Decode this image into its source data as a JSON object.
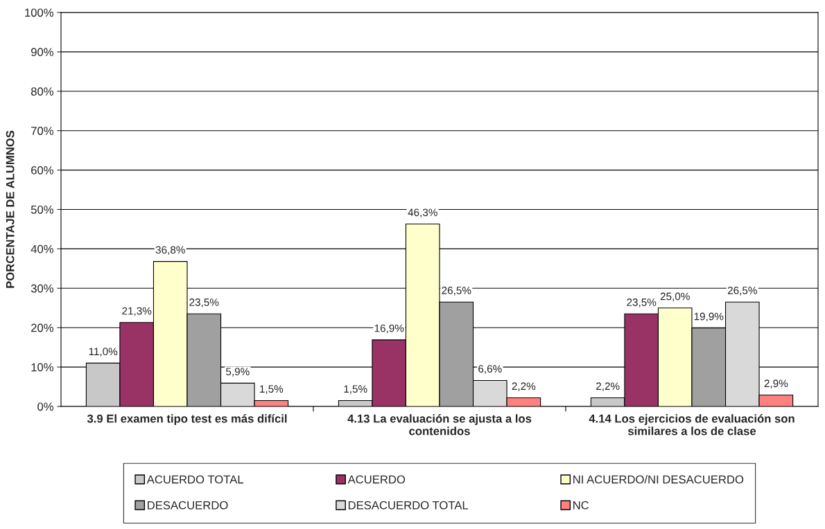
{
  "chart_data": {
    "type": "bar",
    "ylabel": "PORCENTAJE DE ALUMNOS",
    "categories": [
      "3.9 El examen tipo test es más difícil",
      "4.13 La evaluación se ajusta a los\ncontenidos",
      "4.14 Los ejercicios de evaluación son\nsimilares a los de clase"
    ],
    "series": [
      {
        "name": "ACUERDO TOTAL",
        "color": "#c8c8c8",
        "values": [
          11.0,
          1.5,
          2.2
        ],
        "value_labels": [
          "11,0%",
          "1,5%",
          "2,2%"
        ]
      },
      {
        "name": "ACUERDO",
        "color": "#993366",
        "values": [
          21.3,
          16.9,
          23.5
        ],
        "value_labels": [
          "21,3%",
          "16,9%",
          "23,5%"
        ]
      },
      {
        "name": "NI ACUERDO/NI DESACUERDO",
        "color": "#ffffcc",
        "values": [
          36.8,
          46.3,
          25.0
        ],
        "value_labels": [
          "36,8%",
          "46,3%",
          "25,0%"
        ]
      },
      {
        "name": "DESACUERDO",
        "color": "#a0a0a0",
        "values": [
          23.5,
          26.5,
          19.9
        ],
        "value_labels": [
          "23,5%",
          "26,5%",
          "19,9%"
        ]
      },
      {
        "name": "DESACUERDO TOTAL",
        "color": "#d9d9d9",
        "values": [
          5.9,
          6.6,
          26.5
        ],
        "value_labels": [
          "5,9%",
          "6,6%",
          "26,5%"
        ]
      },
      {
        "name": "NC",
        "color": "#ff8080",
        "values": [
          1.5,
          2.2,
          2.9
        ],
        "value_labels": [
          "1,5%",
          "2,2%",
          "2,9%"
        ]
      }
    ],
    "ylim": [
      0,
      100
    ],
    "yticks": [
      {
        "value": 0,
        "label": "0%"
      },
      {
        "value": 10,
        "label": "10%"
      },
      {
        "value": 20,
        "label": "20%"
      },
      {
        "value": 30,
        "label": "30%"
      },
      {
        "value": 40,
        "label": "40%"
      },
      {
        "value": 50,
        "label": "50%"
      },
      {
        "value": 60,
        "label": "60%"
      },
      {
        "value": 70,
        "label": "70%"
      },
      {
        "value": 80,
        "label": "80%"
      },
      {
        "value": 90,
        "label": "90%"
      },
      {
        "value": 100,
        "label": "100%"
      }
    ],
    "grid": "y",
    "legend": "bottom"
  }
}
